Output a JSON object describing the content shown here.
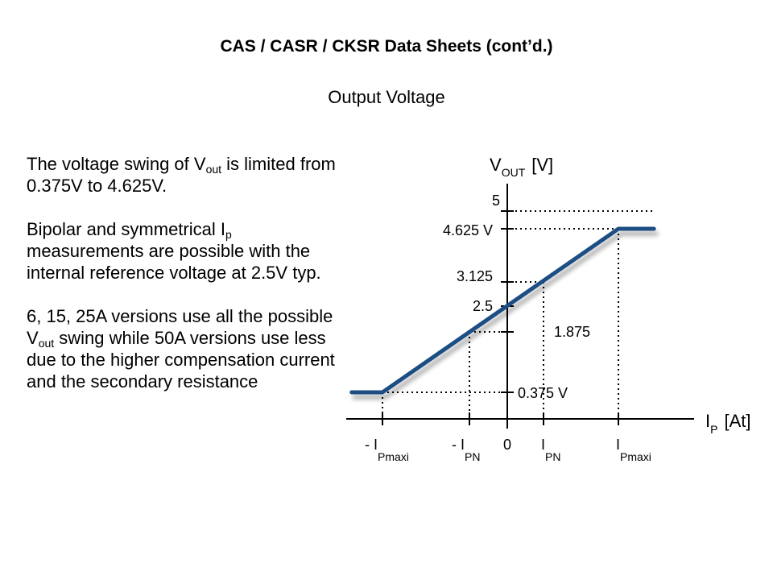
{
  "slide": {
    "title": "CAS / CASR / CKSR Data Sheets (cont’d.)",
    "subtitle": "Output Voltage"
  },
  "body": {
    "p1": {
      "a": "The voltage swing of V",
      "sub": "out",
      "b": " is limited from 0.375V to 4.625V."
    },
    "p2": {
      "a": "Bipolar and symmetrical I",
      "sub": "p",
      "b": " measurements are possible with the internal reference voltage at 2.5V typ."
    },
    "p3": {
      "a": "6, 15, 25A versions use all the possible V",
      "sub": "out",
      "b": " swing while 50A versions use less due to the higher compensation current and the secondary resistance"
    }
  },
  "chart_data": {
    "type": "line",
    "title": "Output Voltage",
    "ylabel": {
      "main": "V",
      "sub": "OUT",
      "unit": "[V]"
    },
    "xlabel": {
      "main": "I",
      "sub": "P",
      "unit": "[At]"
    },
    "y_ticks": [
      {
        "value": 5,
        "label": "5"
      },
      {
        "value": 4.625,
        "label": "4.625 V"
      },
      {
        "value": 3.125,
        "label": "3.125"
      },
      {
        "value": 2.5,
        "label": "2.5"
      },
      {
        "value": 1.875,
        "label": "1.875"
      },
      {
        "value": 0.375,
        "label": "0.375 V"
      }
    ],
    "x_ticks": [
      {
        "value": -3.25,
        "prefix": "- I",
        "sub": "Pmaxi"
      },
      {
        "value": -1,
        "prefix": "- I",
        "sub": "PN"
      },
      {
        "value": 0,
        "prefix": "0",
        "sub": ""
      },
      {
        "value": 1,
        "prefix": "I",
        "sub": "PN"
      },
      {
        "value": 3.25,
        "prefix": "I",
        "sub": "Pmaxi"
      }
    ],
    "series": [
      {
        "name": "Vout",
        "color": "#1f4e83",
        "points": [
          [
            -4.1,
            0.375
          ],
          [
            -3.25,
            0.375
          ],
          [
            3.25,
            4.625
          ],
          [
            4.1,
            4.625
          ]
        ]
      }
    ],
    "ylim": [
      0,
      5.3
    ],
    "xlim": [
      -4.3,
      5
    ]
  }
}
